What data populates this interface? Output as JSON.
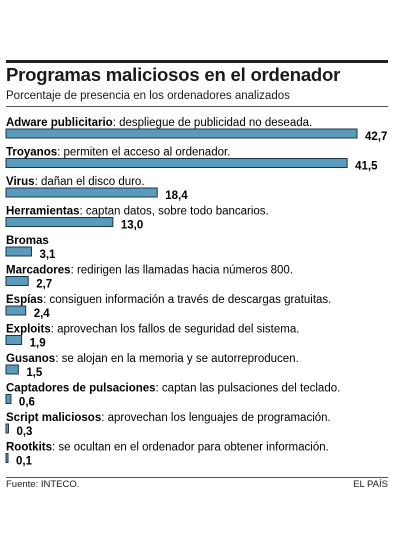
{
  "title": "Programas maliciosos en el ordenador",
  "subtitle": "Porcentaje de presencia en los ordenadores analizados",
  "source": "Fuente: INTECO.",
  "credit": "EL PAÍS",
  "bar_color": "#5a9bbd",
  "chart_data": {
    "type": "bar",
    "orientation": "horizontal",
    "unit": "%",
    "max": 42.7,
    "items": [
      {
        "name": "Adware publicitario",
        "desc": ": despliegue de publicidad no deseada.",
        "value": 42.7,
        "label": "42,7"
      },
      {
        "name": "Troyanos",
        "desc": ": permiten el acceso al ordenador.",
        "value": 41.5,
        "label": "41,5"
      },
      {
        "name": "Virus",
        "desc": ": dañan el disco duro.",
        "value": 18.4,
        "label": "18,4"
      },
      {
        "name": "Herramientas",
        "desc": ": captan datos, sobre todo bancarios.",
        "value": 13.0,
        "label": "13,0"
      },
      {
        "name": "Bromas",
        "desc": "",
        "value": 3.1,
        "label": "3,1"
      },
      {
        "name": "Marcadores",
        "desc": ": redirigen las llamadas hacia números 800.",
        "value": 2.7,
        "label": "2,7"
      },
      {
        "name": "Espías",
        "desc": ": consiguen información a través de descargas gratuitas.",
        "value": 2.4,
        "label": "2,4"
      },
      {
        "name": "Exploits",
        "desc": ": aprovechan los fallos de seguridad del sistema.",
        "value": 1.9,
        "label": "1,9"
      },
      {
        "name": "Gusanos",
        "desc": ": se alojan en la memoria y se autorreproducen.",
        "value": 1.5,
        "label": "1,5"
      },
      {
        "name": "Captadores de pulsaciones",
        "desc": ": captan las pulsaciones del teclado.",
        "value": 0.6,
        "label": "0,6"
      },
      {
        "name": "Script maliciosos",
        "desc": ": aprovechan los lenguajes de programación.",
        "value": 0.3,
        "label": "0,3"
      },
      {
        "name": "Rootkits",
        "desc": ": se ocultan en el ordenador para obtener información.",
        "value": 0.1,
        "label": "0,1"
      }
    ]
  }
}
